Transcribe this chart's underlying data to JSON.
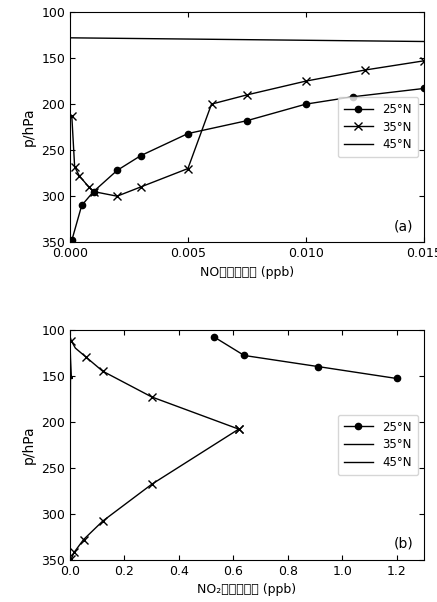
{
  "panel_a": {
    "title": "(a)",
    "xlabel": "NO体积混合比 (ppb)",
    "ylabel": "p/hPa",
    "xlim": [
      0,
      0.015
    ],
    "ylim": [
      350,
      100
    ],
    "xticks": [
      0,
      0.005,
      0.01,
      0.015
    ],
    "yticks": [
      100,
      150,
      200,
      250,
      300,
      350
    ],
    "series_25N": {
      "label": "25°N",
      "x": [
        8e-05,
        0.0005,
        0.001,
        0.002,
        0.003,
        0.005,
        0.0075,
        0.01,
        0.012,
        0.015
      ],
      "y": [
        348,
        310,
        295,
        272,
        256,
        232,
        218,
        200,
        192,
        183
      ],
      "marker": "o",
      "linestyle": "-"
    },
    "series_35N": {
      "label": "35°N",
      "x": [
        8e-05,
        0.0002,
        0.0004,
        0.0008,
        0.001,
        0.002,
        0.003,
        0.005,
        0.006,
        0.0075,
        0.01,
        0.0125,
        0.015
      ],
      "y": [
        213,
        268,
        278,
        290,
        295,
        300,
        290,
        270,
        200,
        190,
        175,
        163,
        153
      ],
      "marker": "x",
      "linestyle": "-"
    },
    "series_45N": {
      "label": "45°N",
      "x": [
        0.0,
        0.015
      ],
      "y": [
        128,
        132
      ],
      "marker": "",
      "linestyle": "-"
    }
  },
  "panel_b": {
    "title": "(b)",
    "xlabel": "NO₂体积混合比 (ppb)",
    "ylabel": "p/hPa",
    "xlim": [
      0,
      1.3
    ],
    "ylim": [
      350,
      100
    ],
    "xticks": [
      0,
      0.2,
      0.4,
      0.6,
      0.8,
      1.0,
      1.2
    ],
    "yticks": [
      100,
      150,
      200,
      250,
      300,
      350
    ],
    "series_25N": {
      "label": "25°N",
      "x": [
        0.53,
        0.64,
        0.91,
        1.2
      ],
      "y": [
        108,
        128,
        140,
        153
      ],
      "marker": "o",
      "linestyle": "-"
    },
    "series_35N_curve": {
      "label": "35°N",
      "x": [
        0.001,
        0.005,
        0.02,
        0.06,
        0.12,
        0.3,
        0.62,
        0.62,
        0.3,
        0.12,
        0.05,
        0.015,
        0.005,
        0.001
      ],
      "y": [
        108,
        112,
        120,
        130,
        145,
        173,
        208,
        208,
        268,
        308,
        328,
        342,
        349,
        350
      ],
      "x_marks": [
        0.005,
        0.06,
        0.12,
        0.3,
        0.62,
        0.62,
        0.3,
        0.12,
        0.05,
        0.015,
        0.005
      ],
      "y_marks": [
        112,
        130,
        145,
        173,
        208,
        208,
        268,
        308,
        328,
        342,
        349
      ]
    },
    "series_45N": {
      "label": "45°N",
      "x": [
        0.0,
        0.002,
        0.005,
        0.008,
        0.005,
        0.002,
        0.0
      ],
      "y": [
        108,
        130,
        150,
        153,
        150,
        155,
        350
      ],
      "marker": "",
      "linestyle": "-"
    }
  }
}
